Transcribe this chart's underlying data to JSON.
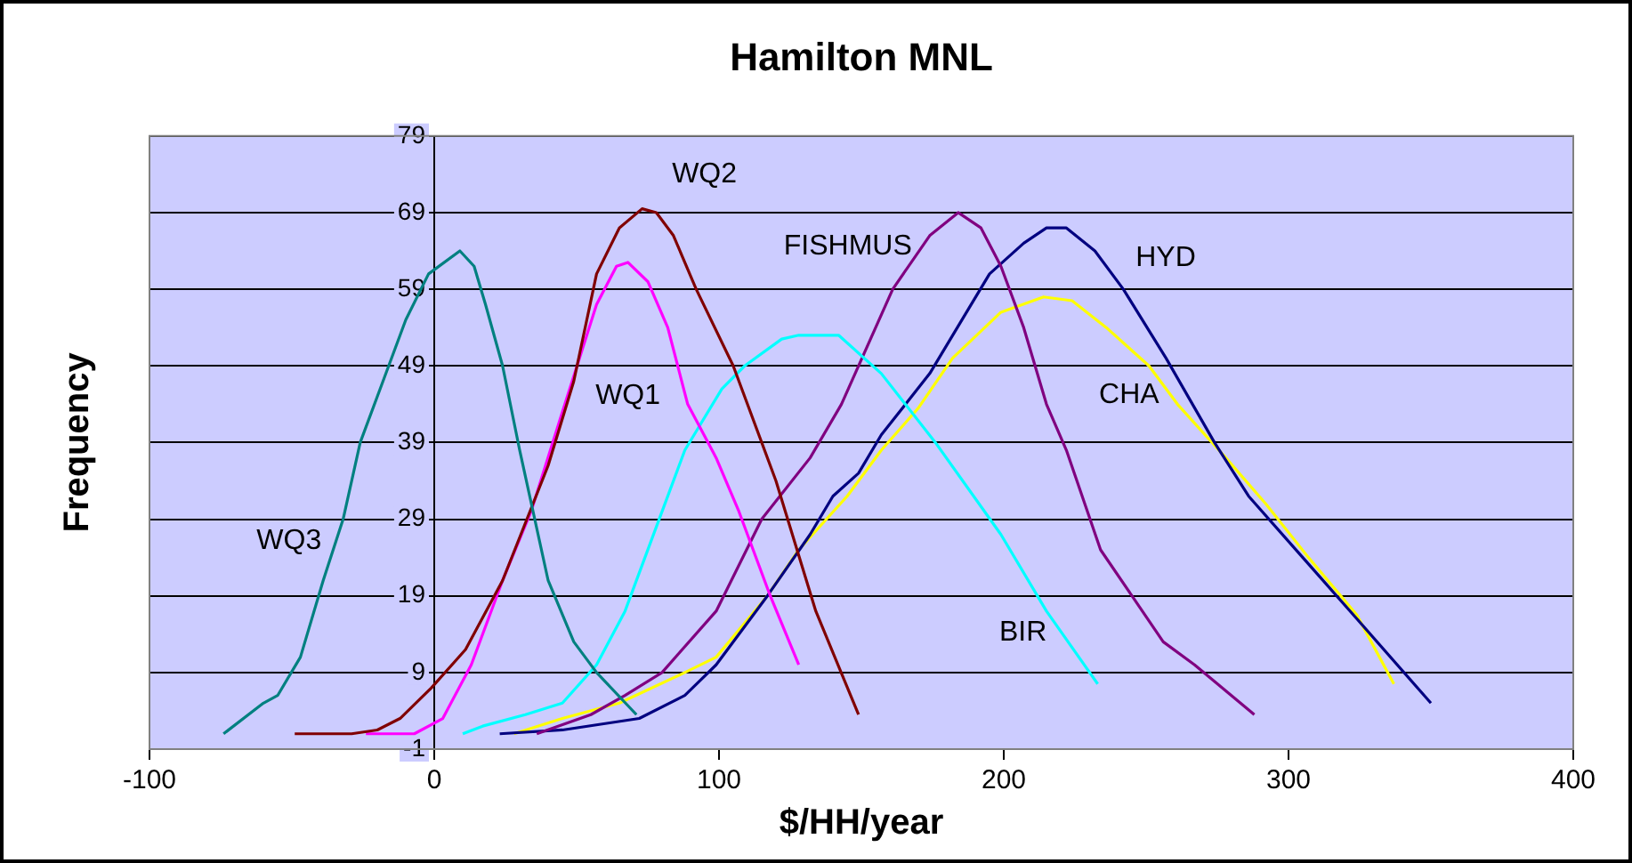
{
  "chart_data": {
    "type": "line",
    "title": "Hamilton MNL",
    "xlabel": "$/HH/year",
    "ylabel": "Frequency",
    "xlim": [
      -100,
      400
    ],
    "xticks": [
      -100,
      0,
      100,
      200,
      300,
      400
    ],
    "ylim": [
      -1,
      79
    ],
    "yticks": [
      -1,
      9,
      19,
      29,
      39,
      49,
      59,
      69,
      79
    ],
    "grid": "y",
    "legend": false,
    "marker": "none",
    "line_style": "solid",
    "series": [
      {
        "name": "WQ3",
        "color": "#008080",
        "x": [
          -74,
          -60,
          -55,
          -47,
          -39,
          -32,
          -26,
          -18,
          -10,
          -2,
          9,
          14,
          18,
          24,
          30,
          40,
          49,
          57,
          71
        ],
        "values": [
          1,
          5,
          6,
          11,
          21,
          29,
          39,
          47,
          55,
          61,
          64,
          62,
          57,
          49,
          38,
          21,
          13,
          9,
          3.5
        ]
      },
      {
        "name": "WQ2",
        "color": "#800000",
        "x": [
          -49,
          -29,
          -20,
          -12,
          -1,
          11,
          24,
          40,
          49,
          57,
          65,
          73,
          78,
          84,
          92,
          105,
          120,
          134,
          149
        ],
        "values": [
          1,
          1,
          1.5,
          3,
          7,
          12,
          21,
          36,
          47,
          61,
          67,
          69.5,
          69,
          66,
          59,
          49,
          34,
          17,
          3.5
        ]
      },
      {
        "name": "WQ1",
        "color": "#ff00ff",
        "x": [
          -24,
          -7,
          3,
          13,
          24,
          34,
          45,
          57,
          64,
          68,
          75,
          82,
          89,
          99,
          107,
          118,
          128
        ],
        "values": [
          1,
          1,
          3,
          10,
          21,
          30,
          43,
          57,
          62,
          62.5,
          60,
          54,
          44,
          37,
          30,
          19,
          10
        ]
      },
      {
        "name": "BIR",
        "color": "#00ffff",
        "x": [
          10,
          17,
          32,
          45,
          57,
          67,
          78,
          88,
          101,
          109,
          122,
          128,
          138,
          142,
          157,
          176,
          199,
          215,
          233
        ],
        "values": [
          1,
          2,
          3.5,
          5,
          10,
          17,
          28,
          38,
          46,
          49,
          52.5,
          53,
          53,
          53,
          48,
          39,
          27,
          17,
          7.5
        ]
      },
      {
        "name": "FISHMUS",
        "color": "#800080",
        "x": [
          36,
          55,
          67,
          80,
          99,
          115,
          132,
          143,
          161,
          174,
          184,
          192,
          199,
          207,
          215,
          222,
          234,
          245,
          256,
          267,
          288
        ],
        "values": [
          1,
          3.5,
          6,
          9,
          17,
          29,
          37,
          44,
          59,
          66,
          69,
          67,
          62,
          54,
          44,
          38,
          25,
          19,
          13,
          10,
          3.5
        ]
      },
      {
        "name": "HYD",
        "color": "#000080",
        "x": [
          23,
          45,
          72,
          88,
          99,
          117,
          132,
          140,
          149,
          157,
          174,
          195,
          207,
          215,
          222,
          232,
          242,
          257,
          274,
          286,
          305,
          324,
          350
        ],
        "values": [
          1,
          1.5,
          3,
          6,
          10,
          19,
          27,
          32,
          35,
          40,
          48,
          61,
          65,
          67,
          67,
          64,
          59,
          50,
          39,
          32,
          24,
          16,
          5
        ]
      },
      {
        "name": "CHA",
        "color": "#ffff00",
        "x": [
          28,
          45,
          65,
          88,
          99,
          117,
          128,
          145,
          157,
          170,
          182,
          199,
          214,
          224,
          236,
          251,
          261,
          278,
          292,
          307,
          324,
          337
        ],
        "values": [
          1,
          3,
          5,
          9,
          11,
          19,
          25,
          32,
          38,
          43.5,
          50,
          56,
          58,
          57.5,
          54,
          49,
          44,
          37,
          31,
          24,
          16.5,
          7.5
        ]
      }
    ]
  }
}
